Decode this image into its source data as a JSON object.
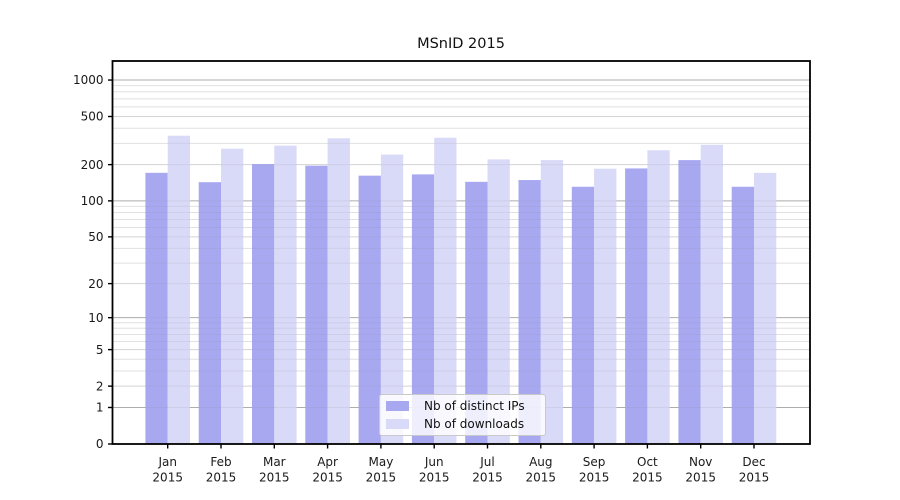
{
  "chart_data": {
    "type": "bar",
    "title": "MSnID 2015",
    "year_label": "2015",
    "categories": [
      "Jan",
      "Feb",
      "Mar",
      "Apr",
      "May",
      "Jun",
      "Jul",
      "Aug",
      "Sep",
      "Oct",
      "Nov",
      "Dec"
    ],
    "series": [
      {
        "name": "Nb of distinct IPs",
        "color": "#a8a8f1",
        "values": [
          171,
          143,
          202,
          196,
          162,
          166,
          144,
          149,
          131,
          186,
          218,
          131
        ]
      },
      {
        "name": "Nb of downloads",
        "color": "#d9d9f8",
        "values": [
          347,
          271,
          287,
          330,
          242,
          334,
          221,
          218,
          185,
          263,
          292,
          171
        ]
      }
    ],
    "y_ticks": [
      0,
      1,
      2,
      5,
      10,
      20,
      50,
      100,
      200,
      500,
      1000
    ],
    "y_scale": "log10(1+v)",
    "ylim": [
      0,
      1430
    ],
    "grid": true,
    "legend_position": "lower center",
    "colors": {
      "grid_major": "#b3b3b3",
      "grid_mid": "#dedede",
      "grid_minor": "#eeeeee",
      "axis": "#000000",
      "text": "#1a1a1a"
    }
  }
}
